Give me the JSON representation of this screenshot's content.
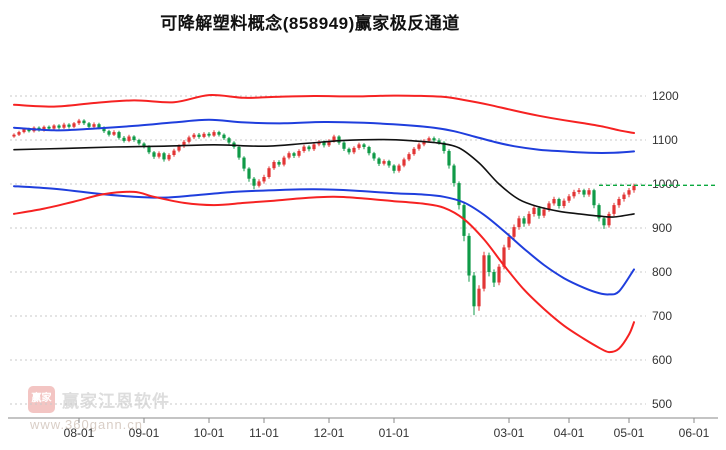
{
  "title": "可降解塑料概念(858949)赢家极反通道",
  "watermark": {
    "logo_text": "赢家",
    "name": "赢家江恩软件",
    "url": "www.360gann.cn"
  },
  "chart_data": {
    "type": "candlestick",
    "title": "可降解塑料概念(858949)赢家极反通道",
    "legend_position": "none",
    "grid": true,
    "y_axis": {
      "ticks": [
        1200,
        1100,
        1000,
        900,
        800,
        700,
        600,
        500
      ],
      "range": [
        500,
        1250
      ]
    },
    "x_axis": {
      "labels": [
        "08-01",
        "09-01",
        "10-01",
        "11-01",
        "12-01",
        "01-01",
        "03-01",
        "04-01",
        "05-01",
        "06-01"
      ],
      "label_indices": [
        13,
        26,
        39,
        50,
        63,
        76,
        99,
        111,
        123,
        136
      ]
    },
    "colors": {
      "up": "#e23535",
      "down": "#0f9a47",
      "grid": "#c9c9c9",
      "axis": "#8a8a8a",
      "label": "#333333"
    },
    "candles": [
      [
        1108,
        1112,
        1105,
        1115
      ],
      [
        1112,
        1118,
        1109,
        1121
      ],
      [
        1118,
        1125,
        1115,
        1128
      ],
      [
        1125,
        1120,
        1117,
        1128
      ],
      [
        1120,
        1128,
        1117,
        1131
      ],
      [
        1128,
        1122,
        1119,
        1131
      ],
      [
        1122,
        1130,
        1119,
        1133
      ],
      [
        1130,
        1126,
        1122,
        1133
      ],
      [
        1126,
        1133,
        1123,
        1136
      ],
      [
        1133,
        1128,
        1124,
        1136
      ],
      [
        1128,
        1135,
        1125,
        1139
      ],
      [
        1135,
        1130,
        1126,
        1138
      ],
      [
        1130,
        1138,
        1127,
        1141
      ],
      [
        1138,
        1144,
        1134,
        1148
      ],
      [
        1144,
        1138,
        1134,
        1147
      ],
      [
        1138,
        1130,
        1126,
        1141
      ],
      [
        1130,
        1136,
        1127,
        1140
      ],
      [
        1136,
        1128,
        1124,
        1139
      ],
      [
        1128,
        1120,
        1116,
        1131
      ],
      [
        1120,
        1112,
        1108,
        1123
      ],
      [
        1112,
        1118,
        1109,
        1122
      ],
      [
        1118,
        1105,
        1101,
        1121
      ],
      [
        1105,
        1098,
        1094,
        1109
      ],
      [
        1098,
        1108,
        1095,
        1112
      ],
      [
        1108,
        1100,
        1096,
        1111
      ],
      [
        1100,
        1092,
        1088,
        1103
      ],
      [
        1092,
        1085,
        1081,
        1095
      ],
      [
        1085,
        1072,
        1068,
        1088
      ],
      [
        1072,
        1062,
        1057,
        1075
      ],
      [
        1062,
        1070,
        1058,
        1074
      ],
      [
        1070,
        1056,
        1051,
        1073
      ],
      [
        1056,
        1066,
        1052,
        1070
      ],
      [
        1066,
        1076,
        1062,
        1080
      ],
      [
        1076,
        1086,
        1072,
        1090
      ],
      [
        1086,
        1096,
        1082,
        1100
      ],
      [
        1096,
        1106,
        1092,
        1110
      ],
      [
        1106,
        1112,
        1102,
        1116
      ],
      [
        1112,
        1107,
        1103,
        1116
      ],
      [
        1107,
        1114,
        1104,
        1118
      ],
      [
        1114,
        1110,
        1106,
        1118
      ],
      [
        1110,
        1118,
        1107,
        1122
      ],
      [
        1118,
        1112,
        1108,
        1121
      ],
      [
        1112,
        1104,
        1100,
        1115
      ],
      [
        1104,
        1094,
        1090,
        1107
      ],
      [
        1094,
        1084,
        1080,
        1097
      ],
      [
        1084,
        1060,
        1055,
        1087
      ],
      [
        1060,
        1035,
        1029,
        1063
      ],
      [
        1035,
        1012,
        1005,
        1038
      ],
      [
        1012,
        996,
        988,
        1016
      ],
      [
        996,
        1006,
        992,
        1011
      ],
      [
        1006,
        1016,
        1001,
        1021
      ],
      [
        1016,
        1036,
        1012,
        1040
      ],
      [
        1036,
        1050,
        1032,
        1054
      ],
      [
        1050,
        1044,
        1039,
        1054
      ],
      [
        1044,
        1060,
        1040,
        1064
      ],
      [
        1060,
        1070,
        1056,
        1074
      ],
      [
        1070,
        1064,
        1059,
        1073
      ],
      [
        1064,
        1075,
        1060,
        1079
      ],
      [
        1075,
        1085,
        1071,
        1089
      ],
      [
        1085,
        1079,
        1074,
        1088
      ],
      [
        1079,
        1090,
        1075,
        1094
      ],
      [
        1090,
        1096,
        1086,
        1100
      ],
      [
        1096,
        1088,
        1083,
        1099
      ],
      [
        1088,
        1098,
        1084,
        1102
      ],
      [
        1098,
        1108,
        1094,
        1112
      ],
      [
        1108,
        1094,
        1089,
        1111
      ],
      [
        1094,
        1080,
        1075,
        1097
      ],
      [
        1080,
        1072,
        1067,
        1083
      ],
      [
        1072,
        1082,
        1068,
        1086
      ],
      [
        1082,
        1090,
        1078,
        1094
      ],
      [
        1090,
        1084,
        1079,
        1093
      ],
      [
        1084,
        1070,
        1065,
        1087
      ],
      [
        1070,
        1058,
        1053,
        1073
      ],
      [
        1058,
        1046,
        1041,
        1061
      ],
      [
        1046,
        1052,
        1042,
        1056
      ],
      [
        1052,
        1042,
        1037,
        1055
      ],
      [
        1042,
        1030,
        1024,
        1045
      ],
      [
        1030,
        1042,
        1026,
        1046
      ],
      [
        1042,
        1056,
        1038,
        1060
      ],
      [
        1056,
        1068,
        1052,
        1072
      ],
      [
        1068,
        1080,
        1064,
        1084
      ],
      [
        1080,
        1090,
        1076,
        1094
      ],
      [
        1090,
        1098,
        1086,
        1102
      ],
      [
        1098,
        1104,
        1094,
        1108
      ],
      [
        1104,
        1099,
        1094,
        1108
      ],
      [
        1099,
        1094,
        1089,
        1104
      ],
      [
        1094,
        1075,
        1069,
        1097
      ],
      [
        1075,
        1042,
        1035,
        1079
      ],
      [
        1042,
        1002,
        994,
        1046
      ],
      [
        1002,
        952,
        942,
        1006
      ],
      [
        952,
        882,
        870,
        956
      ],
      [
        882,
        792,
        778,
        888
      ],
      [
        792,
        722,
        702,
        800
      ],
      [
        722,
        762,
        712,
        770
      ],
      [
        762,
        838,
        756,
        846
      ],
      [
        838,
        800,
        790,
        844
      ],
      [
        800,
        776,
        766,
        806
      ],
      [
        776,
        812,
        770,
        818
      ],
      [
        812,
        856,
        806,
        862
      ],
      [
        856,
        880,
        850,
        888
      ],
      [
        880,
        902,
        874,
        908
      ],
      [
        902,
        922,
        896,
        928
      ],
      [
        922,
        910,
        903,
        927
      ],
      [
        910,
        932,
        905,
        938
      ],
      [
        932,
        946,
        926,
        952
      ],
      [
        946,
        928,
        921,
        950
      ],
      [
        928,
        942,
        923,
        947
      ],
      [
        942,
        956,
        937,
        961
      ],
      [
        956,
        966,
        951,
        971
      ],
      [
        966,
        950,
        944,
        969
      ],
      [
        950,
        962,
        945,
        967
      ],
      [
        962,
        972,
        957,
        977
      ],
      [
        972,
        982,
        967,
        987
      ],
      [
        982,
        986,
        977,
        991
      ],
      [
        986,
        976,
        970,
        989
      ],
      [
        976,
        986,
        971,
        991
      ],
      [
        986,
        952,
        945,
        989
      ],
      [
        952,
        922,
        915,
        956
      ],
      [
        922,
        906,
        898,
        926
      ],
      [
        906,
        932,
        901,
        937
      ],
      [
        932,
        952,
        927,
        957
      ],
      [
        952,
        966,
        946,
        971
      ],
      [
        966,
        976,
        960,
        981
      ],
      [
        976,
        986,
        970,
        991
      ],
      [
        986,
        996,
        980,
        1001
      ]
    ],
    "lines": [
      {
        "name": "upper-red",
        "color": "#f62222",
        "width": 2,
        "points": [
          [
            0,
            1180
          ],
          [
            8,
            1176
          ],
          [
            16,
            1184
          ],
          [
            24,
            1190
          ],
          [
            32,
            1186
          ],
          [
            39,
            1202
          ],
          [
            46,
            1196
          ],
          [
            52,
            1198
          ],
          [
            60,
            1200
          ],
          [
            68,
            1199
          ],
          [
            76,
            1201
          ],
          [
            82,
            1200
          ],
          [
            86,
            1198
          ],
          [
            90,
            1191
          ],
          [
            95,
            1180
          ],
          [
            100,
            1167
          ],
          [
            105,
            1155
          ],
          [
            110,
            1145
          ],
          [
            114,
            1138
          ],
          [
            118,
            1130
          ],
          [
            121,
            1122
          ],
          [
            124,
            1116
          ]
        ]
      },
      {
        "name": "upper-blue",
        "color": "#1f3edd",
        "width": 2,
        "points": [
          [
            0,
            1128
          ],
          [
            8,
            1122
          ],
          [
            16,
            1126
          ],
          [
            24,
            1132
          ],
          [
            32,
            1140
          ],
          [
            39,
            1146
          ],
          [
            46,
            1140
          ],
          [
            54,
            1138
          ],
          [
            62,
            1141
          ],
          [
            70,
            1139
          ],
          [
            78,
            1134
          ],
          [
            84,
            1128
          ],
          [
            88,
            1120
          ],
          [
            92,
            1108
          ],
          [
            96,
            1096
          ],
          [
            100,
            1086
          ],
          [
            105,
            1078
          ],
          [
            110,
            1074
          ],
          [
            115,
            1071
          ],
          [
            120,
            1071
          ],
          [
            124,
            1074
          ]
        ]
      },
      {
        "name": "middle-black",
        "color": "#111111",
        "width": 1.6,
        "points": [
          [
            0,
            1078
          ],
          [
            10,
            1081
          ],
          [
            20,
            1084
          ],
          [
            30,
            1086
          ],
          [
            40,
            1089
          ],
          [
            50,
            1086
          ],
          [
            58,
            1092
          ],
          [
            66,
            1099
          ],
          [
            74,
            1101
          ],
          [
            80,
            1098
          ],
          [
            85,
            1093
          ],
          [
            89,
            1082
          ],
          [
            93,
            1048
          ],
          [
            97,
            1000
          ],
          [
            101,
            965
          ],
          [
            105,
            948
          ],
          [
            109,
            938
          ],
          [
            113,
            932
          ],
          [
            117,
            927
          ],
          [
            120,
            925
          ],
          [
            124,
            932
          ]
        ]
      },
      {
        "name": "lower-blue",
        "color": "#1f3edd",
        "width": 2,
        "points": [
          [
            0,
            995
          ],
          [
            8,
            989
          ],
          [
            16,
            979
          ],
          [
            24,
            971
          ],
          [
            30,
            969
          ],
          [
            36,
            974
          ],
          [
            44,
            982
          ],
          [
            52,
            986
          ],
          [
            60,
            988
          ],
          [
            68,
            985
          ],
          [
            76,
            979
          ],
          [
            82,
            976
          ],
          [
            86,
            971
          ],
          [
            90,
            958
          ],
          [
            94,
            930
          ],
          [
            98,
            893
          ],
          [
            102,
            853
          ],
          [
            106,
            816
          ],
          [
            110,
            786
          ],
          [
            114,
            764
          ],
          [
            117,
            752
          ],
          [
            119,
            749
          ],
          [
            121,
            756
          ],
          [
            124,
            806
          ]
        ]
      },
      {
        "name": "lower-red",
        "color": "#f62222",
        "width": 2,
        "points": [
          [
            0,
            932
          ],
          [
            6,
            944
          ],
          [
            12,
            960
          ],
          [
            18,
            977
          ],
          [
            24,
            982
          ],
          [
            28,
            971
          ],
          [
            34,
            957
          ],
          [
            40,
            952
          ],
          [
            46,
            957
          ],
          [
            52,
            962
          ],
          [
            58,
            968
          ],
          [
            64,
            971
          ],
          [
            70,
            967
          ],
          [
            76,
            961
          ],
          [
            82,
            955
          ],
          [
            86,
            946
          ],
          [
            90,
            920
          ],
          [
            94,
            874
          ],
          [
            98,
            815
          ],
          [
            102,
            760
          ],
          [
            106,
            716
          ],
          [
            110,
            678
          ],
          [
            114,
            648
          ],
          [
            117,
            628
          ],
          [
            119,
            618
          ],
          [
            121,
            626
          ],
          [
            123,
            658
          ],
          [
            124,
            686
          ]
        ]
      }
    ],
    "ref_line": {
      "value": 997,
      "start_index": 117,
      "color": "#0aa93e",
      "style": "dashed"
    }
  }
}
